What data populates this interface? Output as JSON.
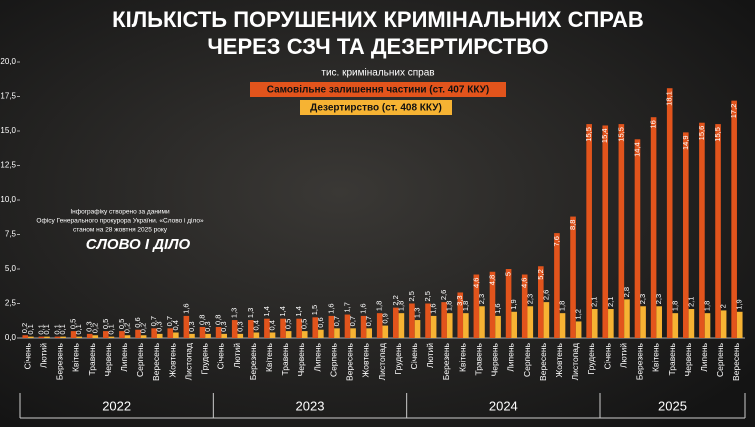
{
  "chart_data": {
    "type": "bar",
    "title": [
      "Кількість порушених кримінальних справ",
      "через СЗЧ та дезертирство"
    ],
    "subtitle": "тис. кримінальних справ",
    "source": [
      "Інфографіку створено за даними",
      "Офісу Генерального прокурора України. «Слово і діло»",
      "станом на 28 жовтня 2025 року"
    ],
    "logo": "СЛОВО І ДІЛО",
    "categories": [
      "Січень",
      "Лютий",
      "Березень",
      "Квітень",
      "Травень",
      "Червень",
      "Липень",
      "Серпень",
      "Вересень",
      "Жовтень",
      "Листопад",
      "Грудень",
      "Січень",
      "Лютий",
      "Березень",
      "Квітень",
      "Травень",
      "Червень",
      "Липень",
      "Серпень",
      "Вересень",
      "Жовтень",
      "Листопад",
      "Грудень",
      "Січень",
      "Лютий",
      "Березень",
      "Квітень",
      "Травень",
      "Червень",
      "Липень",
      "Серпень",
      "Вересень",
      "Жовтень",
      "Листопад",
      "Грудень",
      "Січень",
      "Лютий",
      "Березень",
      "Квітень",
      "Травень",
      "Червень",
      "Липень",
      "Серпень",
      "Вересень"
    ],
    "years": [
      "2022",
      "2023",
      "2024",
      "2025"
    ],
    "series": [
      {
        "name": "Самовільне залишення частини (ст. 407 ККУ)",
        "color": "#e2541c",
        "values": [
          0.2,
          0.1,
          0.1,
          0.5,
          0.3,
          0.5,
          0.5,
          0.6,
          0.7,
          0.7,
          1.6,
          0.8,
          0.8,
          1.3,
          1.3,
          1.4,
          1.4,
          1.4,
          1.5,
          1.6,
          1.7,
          1.6,
          1.8,
          2.2,
          2.5,
          2.5,
          2.6,
          3.3,
          4.6,
          4.8,
          5,
          4.6,
          5.2,
          7.6,
          8.8,
          15.5,
          15.4,
          15.5,
          14.4,
          16,
          18.1,
          14.9,
          15.6,
          15.5,
          17.2
        ],
        "value_labels": [
          "0,2",
          "0,1",
          "0,1",
          "0,5",
          "0,3",
          "0,5",
          "0,5",
          "0,6",
          "0,7",
          "0,7",
          "1,6",
          "0,8",
          "0,8",
          "1,3",
          "1,3",
          "1,4",
          "1,4",
          "1,4",
          "1,5",
          "1,6",
          "1,7",
          "1,6",
          "1,8",
          "2,2",
          "2,5",
          "2,5",
          "2,6",
          "3,3",
          "4,6",
          "4,8",
          "5",
          "4,6",
          "5,2",
          "7,6",
          "8,8",
          "15,5",
          "15,4",
          "15,5",
          "14,4",
          "16",
          "18,1",
          "14,9",
          "15,6",
          "15,5",
          "17,2"
        ]
      },
      {
        "name": "Дезертирство (ст. 408 ККУ)",
        "color": "#f6b333",
        "values": [
          0.1,
          0.1,
          0.1,
          0.1,
          0.2,
          0.1,
          0.2,
          0.2,
          0.3,
          0.4,
          0.3,
          0.3,
          0.3,
          0.3,
          0.4,
          0.4,
          0.5,
          0.5,
          0.6,
          0.7,
          0.7,
          0.7,
          0.9,
          1.8,
          1.3,
          1.6,
          1.8,
          1.8,
          2.3,
          1.6,
          1.9,
          2.3,
          2.6,
          1.8,
          1.2,
          2.1,
          2.1,
          2.8,
          2.3,
          2.3,
          1.8,
          2.1,
          1.8,
          2,
          1.9
        ],
        "value_labels": [
          "0,1",
          "0,1",
          "0,1",
          "0,1",
          "0,2",
          "0,1",
          "0,2",
          "0,2",
          "0,3",
          "0,4",
          "0,3",
          "0,3",
          "0,3",
          "0,3",
          "0,4",
          "0,4",
          "0,5",
          "0,5",
          "0,6",
          "0,7",
          "0,7",
          "0,7",
          "0,9",
          "1,8",
          "1,3",
          "1,6",
          "1,8",
          "1,8",
          "2,3",
          "1,6",
          "1,9",
          "2,3",
          "2,6",
          "1,8",
          "1,2",
          "2,1",
          "2,1",
          "2,8",
          "2,3",
          "2,3",
          "1,8",
          "2,1",
          "1,8",
          "2",
          "1,9"
        ]
      }
    ],
    "ylim": [
      0,
      20
    ],
    "yticks": [
      {
        "value": 0,
        "label": "0,0"
      },
      {
        "value": 2.5,
        "label": "2,5"
      },
      {
        "value": 5,
        "label": "5,0"
      },
      {
        "value": 7.5,
        "label": "7,5"
      },
      {
        "value": 10,
        "label": "10,0"
      },
      {
        "value": 12.5,
        "label": "12,5"
      },
      {
        "value": 15,
        "label": "15,0"
      },
      {
        "value": 17.5,
        "label": "17,5"
      },
      {
        "value": 20,
        "label": "20,0"
      }
    ],
    "grid": false
  }
}
